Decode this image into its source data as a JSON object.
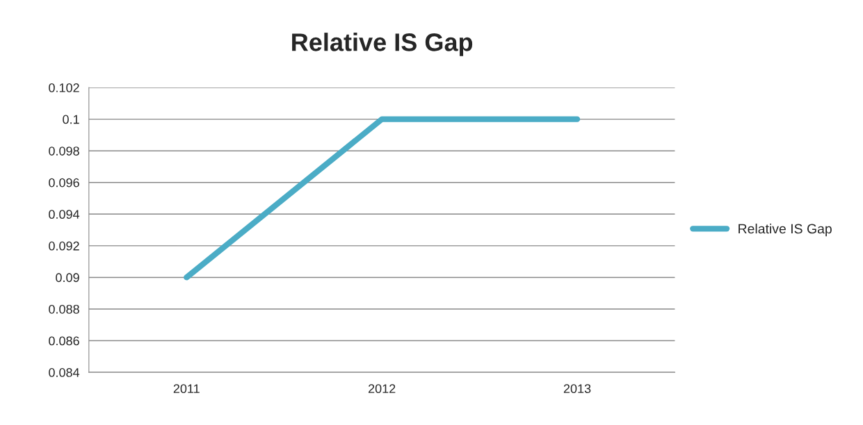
{
  "chart_data": {
    "type": "line",
    "title": "Relative IS Gap",
    "categories": [
      "2011",
      "2012",
      "2013"
    ],
    "series": [
      {
        "name": "Relative IS Gap",
        "color": "#4bacc6",
        "values": [
          0.09,
          0.1,
          0.1
        ]
      }
    ],
    "ylim": [
      0.084,
      0.102
    ],
    "yticks": [
      0.084,
      0.086,
      0.088,
      0.09,
      0.092,
      0.094,
      0.096,
      0.098,
      0.1,
      0.102
    ],
    "grid": "y",
    "legend": "right",
    "marker": "none",
    "line_style": "solid"
  }
}
